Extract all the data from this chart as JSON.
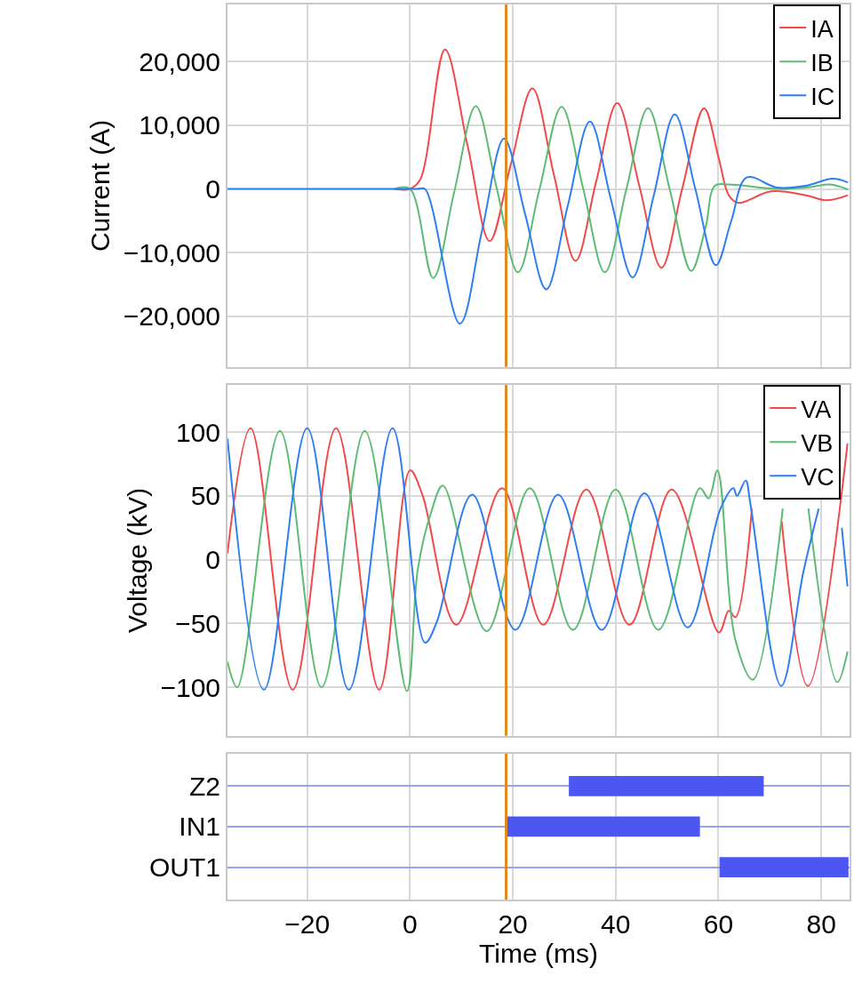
{
  "chart_data": [
    {
      "type": "line",
      "ylabel": "Current (A)",
      "xlim": [
        -35.5,
        85.5
      ],
      "xticks": [
        -20,
        0,
        20,
        40,
        60,
        80
      ],
      "ylim": [
        -28000,
        29000
      ],
      "yticks": [
        {
          "value": -20000,
          "label": "−20,000"
        },
        {
          "value": -10000,
          "label": "−10,000"
        },
        0,
        {
          "value": 10000,
          "label": "10,000"
        },
        {
          "value": 20000,
          "label": "20,000"
        }
      ],
      "grid": true,
      "legend": "top right",
      "tick_labels": "y",
      "ref_lines": [
        {
          "axis": "x",
          "value": 18.7,
          "color": "#e08a1e"
        }
      ],
      "series": [
        {
          "name": "IA",
          "color": "#f04a4a",
          "x": [
            -3,
            0,
            2,
            6.8,
            11.2,
            15.5,
            19.6,
            23.8,
            28,
            32.2,
            36.2,
            40.3,
            44.6,
            48.9,
            53,
            57.2,
            60,
            62,
            63.8,
            70.2,
            77,
            81,
            85.2
          ],
          "values": [
            0,
            0,
            1500,
            21900,
            6800,
            -8200,
            3800,
            15800,
            2200,
            -11300,
            1100,
            13500,
            500,
            -12400,
            200,
            12700,
            5000,
            -1000,
            -2200,
            -400,
            -1000,
            -1800,
            -1000
          ]
        },
        {
          "name": "IB",
          "color": "#5dbb73",
          "x": [
            -3,
            0,
            4.5,
            8.6,
            12.8,
            16.9,
            21,
            25.2,
            29.5,
            33.7,
            37.9,
            42.1,
            46.3,
            50.5,
            54.7,
            57.5,
            59.3,
            62,
            71.4,
            78,
            81.7,
            85.2
          ],
          "values": [
            0,
            0,
            -14000,
            -500,
            13000,
            0,
            -13100,
            0,
            12900,
            0,
            -13100,
            0,
            12700,
            0,
            -12900,
            -6000,
            500,
            700,
            0,
            300,
            700,
            -100
          ]
        },
        {
          "name": "IC",
          "color": "#2f7ff0",
          "x": [
            -35.5,
            -20,
            -10,
            -1,
            1.5,
            2.9,
            9.7,
            14,
            18.3,
            22.4,
            26.5,
            30.7,
            35,
            39.1,
            43.3,
            47.4,
            51.5,
            55.5,
            59.5,
            62.5,
            65.5,
            71.4,
            77,
            82.2,
            85.2
          ],
          "values": [
            0,
            0,
            0,
            0,
            0,
            0,
            -21200,
            -6600,
            7900,
            -4000,
            -15800,
            -2600,
            10600,
            -1700,
            -13900,
            -1100,
            11700,
            0,
            -12000,
            -5000,
            1800,
            200,
            500,
            1600,
            1000
          ]
        }
      ]
    },
    {
      "type": "line",
      "ylabel": "Voltage (kV)",
      "xlim": [
        -35.5,
        85.5
      ],
      "xticks": [
        -20,
        0,
        20,
        40,
        60,
        80
      ],
      "ylim": [
        -138,
        137
      ],
      "yticks": [
        {
          "value": -100,
          "label": "−100"
        },
        {
          "value": -50,
          "label": "−50"
        },
        0,
        50,
        100
      ],
      "grid": true,
      "legend": "top right",
      "tick_labels": "y",
      "ref_lines": [
        {
          "axis": "x",
          "value": 18.7,
          "color": "#e08a1e"
        }
      ],
      "series": [
        {
          "name": "VA",
          "color": "#f04a4a",
          "x": [
            -35.5,
            -31,
            -22.8,
            -14.4,
            -6,
            0,
            2.4,
            9,
            17.9,
            25.9,
            34.3,
            42.7,
            50.9,
            60.1,
            62,
            63.3,
            66.5,
            69,
            72.3,
            77.4,
            85.1
          ],
          "values": [
            5,
            103,
            -102,
            103,
            -102,
            70,
            51,
            -51,
            56,
            -51,
            55,
            -51,
            55,
            -57,
            -40,
            -45,
            40,
            null,
            30,
            -99,
            91
          ]
        },
        {
          "name": "VB",
          "color": "#5dbb73",
          "x": [
            -35.5,
            -33.6,
            -25.3,
            -17.2,
            -8.8,
            -0.6,
            1.5,
            4.1,
            6.4,
            14.9,
            23.3,
            31.7,
            40,
            48.3,
            56.4,
            58.1,
            59.8,
            63.3,
            66.7,
            72.5,
            75,
            77.5,
            83.1,
            85.1
          ],
          "values": [
            -80,
            -100,
            101,
            -100,
            101,
            -103,
            -8,
            37,
            58,
            -56,
            56,
            -55,
            55,
            -55,
            56,
            48,
            70,
            -63,
            -94,
            40,
            null,
            40,
            -96,
            -72
          ]
        },
        {
          "name": "VC",
          "color": "#2f7ff0",
          "x": [
            -35.5,
            -28.4,
            -20,
            -11.9,
            -3.4,
            2.9,
            5.2,
            12.1,
            20.5,
            28.8,
            37.3,
            45.6,
            54,
            60.4,
            62.9,
            63.6,
            65.3,
            66.2,
            72.2,
            76.5,
            79.5,
            81,
            84,
            85.1
          ],
          "values": [
            95,
            -102,
            103,
            -102,
            103,
            -65,
            -49,
            51,
            -55,
            51,
            -55,
            52,
            -53,
            40,
            56,
            50,
            62,
            44,
            -99,
            -10,
            40,
            null,
            25,
            -21
          ]
        }
      ]
    },
    {
      "type": "bar",
      "orientation": "horizontal",
      "xlabel": "Time (ms)",
      "xlim": [
        -35.5,
        85.5
      ],
      "xticks": [
        {
          "value": -20,
          "label": "−20"
        },
        0,
        20,
        40,
        60,
        80
      ],
      "grid": true,
      "ref_lines": [
        {
          "axis": "x",
          "value": 18.7,
          "color": "#e08a1e"
        }
      ],
      "categories": [
        "Z2",
        "IN1",
        "OUT1"
      ],
      "base": [
        30.9,
        18.8,
        60.2
      ],
      "values": [
        37.9,
        37.6,
        25.1
      ],
      "color": "#4b57f0"
    }
  ]
}
